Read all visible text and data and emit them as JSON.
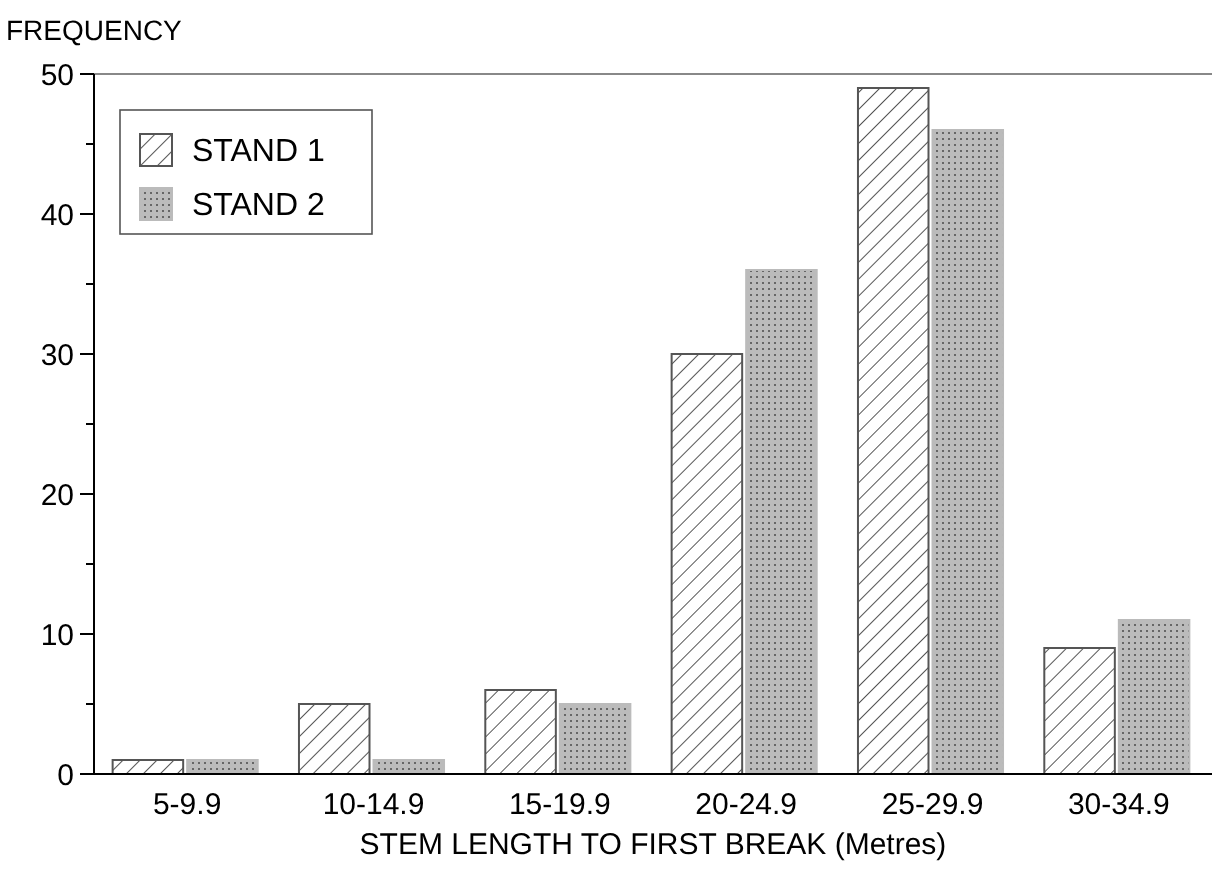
{
  "chart_data": {
    "type": "bar",
    "ylabel": "FREQUENCY",
    "xlabel": "STEM LENGTH TO FIRST BREAK (Metres)",
    "categories": [
      "5-9.9",
      "10-14.9",
      "15-19.9",
      "20-24.9",
      "25-29.9",
      "30-34.9"
    ],
    "series": [
      {
        "name": "STAND 1",
        "color": "#555555",
        "values": [
          1,
          5,
          6,
          30,
          49,
          9
        ]
      },
      {
        "name": "STAND 2",
        "color": "#bbbbbb",
        "values": [
          1,
          1,
          5,
          36,
          46,
          11
        ]
      }
    ],
    "ylim": [
      0,
      50
    ],
    "yticks": [
      0,
      {
        "value": 5,
        "label": null
      },
      10,
      {
        "value": 15,
        "label": null
      },
      20,
      {
        "value": 25,
        "label": null
      },
      30,
      {
        "value": 35,
        "label": null
      },
      40,
      {
        "value": 45,
        "label": null
      },
      50
    ],
    "grid": false,
    "legend": "top left"
  }
}
